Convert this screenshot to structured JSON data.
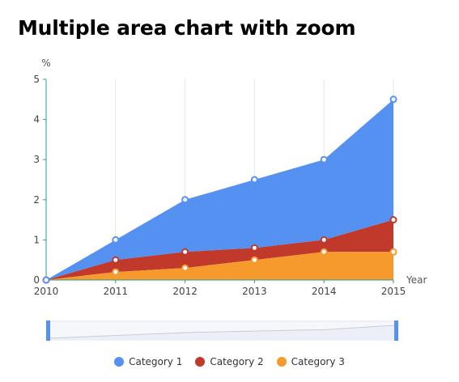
{
  "title": "Multiple area chart with zoom",
  "chart_data": {
    "type": "area",
    "stacked": true,
    "title": "Multiple area chart with zoom",
    "xlabel": "Year",
    "ylabel": "%",
    "x": [
      "2010",
      "2011",
      "2012",
      "2013",
      "2014",
      "2015"
    ],
    "ylim": [
      0,
      5
    ],
    "yticks": [
      "0",
      "1",
      "2",
      "3",
      "4",
      "5"
    ],
    "series": [
      {
        "name": "Category 1",
        "values": [
          0,
          0.5,
          1.3,
          1.7,
          2.0,
          3.0
        ],
        "color": "#5591f1"
      },
      {
        "name": "Category 2",
        "values": [
          0,
          0.3,
          0.4,
          0.3,
          0.3,
          0.8
        ],
        "color": "#c0392b"
      },
      {
        "name": "Category 3",
        "values": [
          0,
          0.2,
          0.3,
          0.5,
          0.7,
          0.7
        ],
        "color": "#f79a2e"
      }
    ],
    "stacked_totals": {
      "Category 1": [
        0,
        1,
        2,
        2.5,
        3,
        4.5
      ],
      "Category 2": [
        0,
        0.5,
        0.7,
        0.8,
        1.0,
        1.5
      ],
      "Category 3": [
        0,
        0.2,
        0.3,
        0.5,
        0.7,
        0.7
      ]
    },
    "grid": "vertical",
    "legend": "bottom-center",
    "zoom_slider": true
  }
}
